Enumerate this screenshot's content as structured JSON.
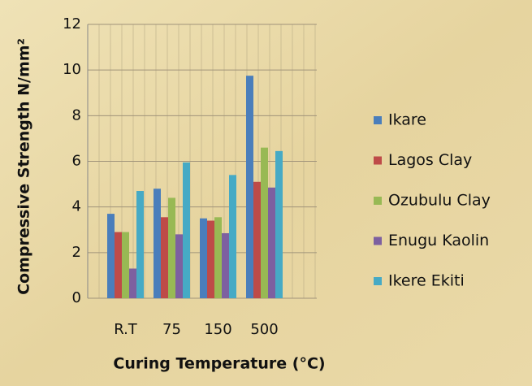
{
  "chart_data": {
    "type": "bar",
    "xlabel": "Curing Temperature  (°C)",
    "ylabel": "Compressive Strength N/mm²",
    "categories": [
      "R.T",
      "75",
      "150",
      "500"
    ],
    "series": [
      {
        "name": "Ikare",
        "color": "#4a7ebb",
        "values": [
          3.7,
          4.8,
          3.5,
          9.75
        ]
      },
      {
        "name": "Lagos Clay",
        "color": "#be4b48",
        "values": [
          2.9,
          3.55,
          3.4,
          5.1
        ]
      },
      {
        "name": "Ozubulu Clay",
        "color": "#98b954",
        "values": [
          2.9,
          4.4,
          3.55,
          6.6
        ]
      },
      {
        "name": "Enugu Kaolin",
        "color": "#7d60a0",
        "values": [
          1.3,
          2.8,
          2.85,
          4.85
        ]
      },
      {
        "name": "Ikere Ekiti",
        "color": "#46aac5",
        "values": [
          4.7,
          5.95,
          5.4,
          6.45
        ]
      }
    ],
    "ylim": [
      0,
      12
    ],
    "yticks": [
      0,
      2,
      4,
      6,
      8,
      10,
      12
    ],
    "grid": true,
    "legend": "right"
  }
}
